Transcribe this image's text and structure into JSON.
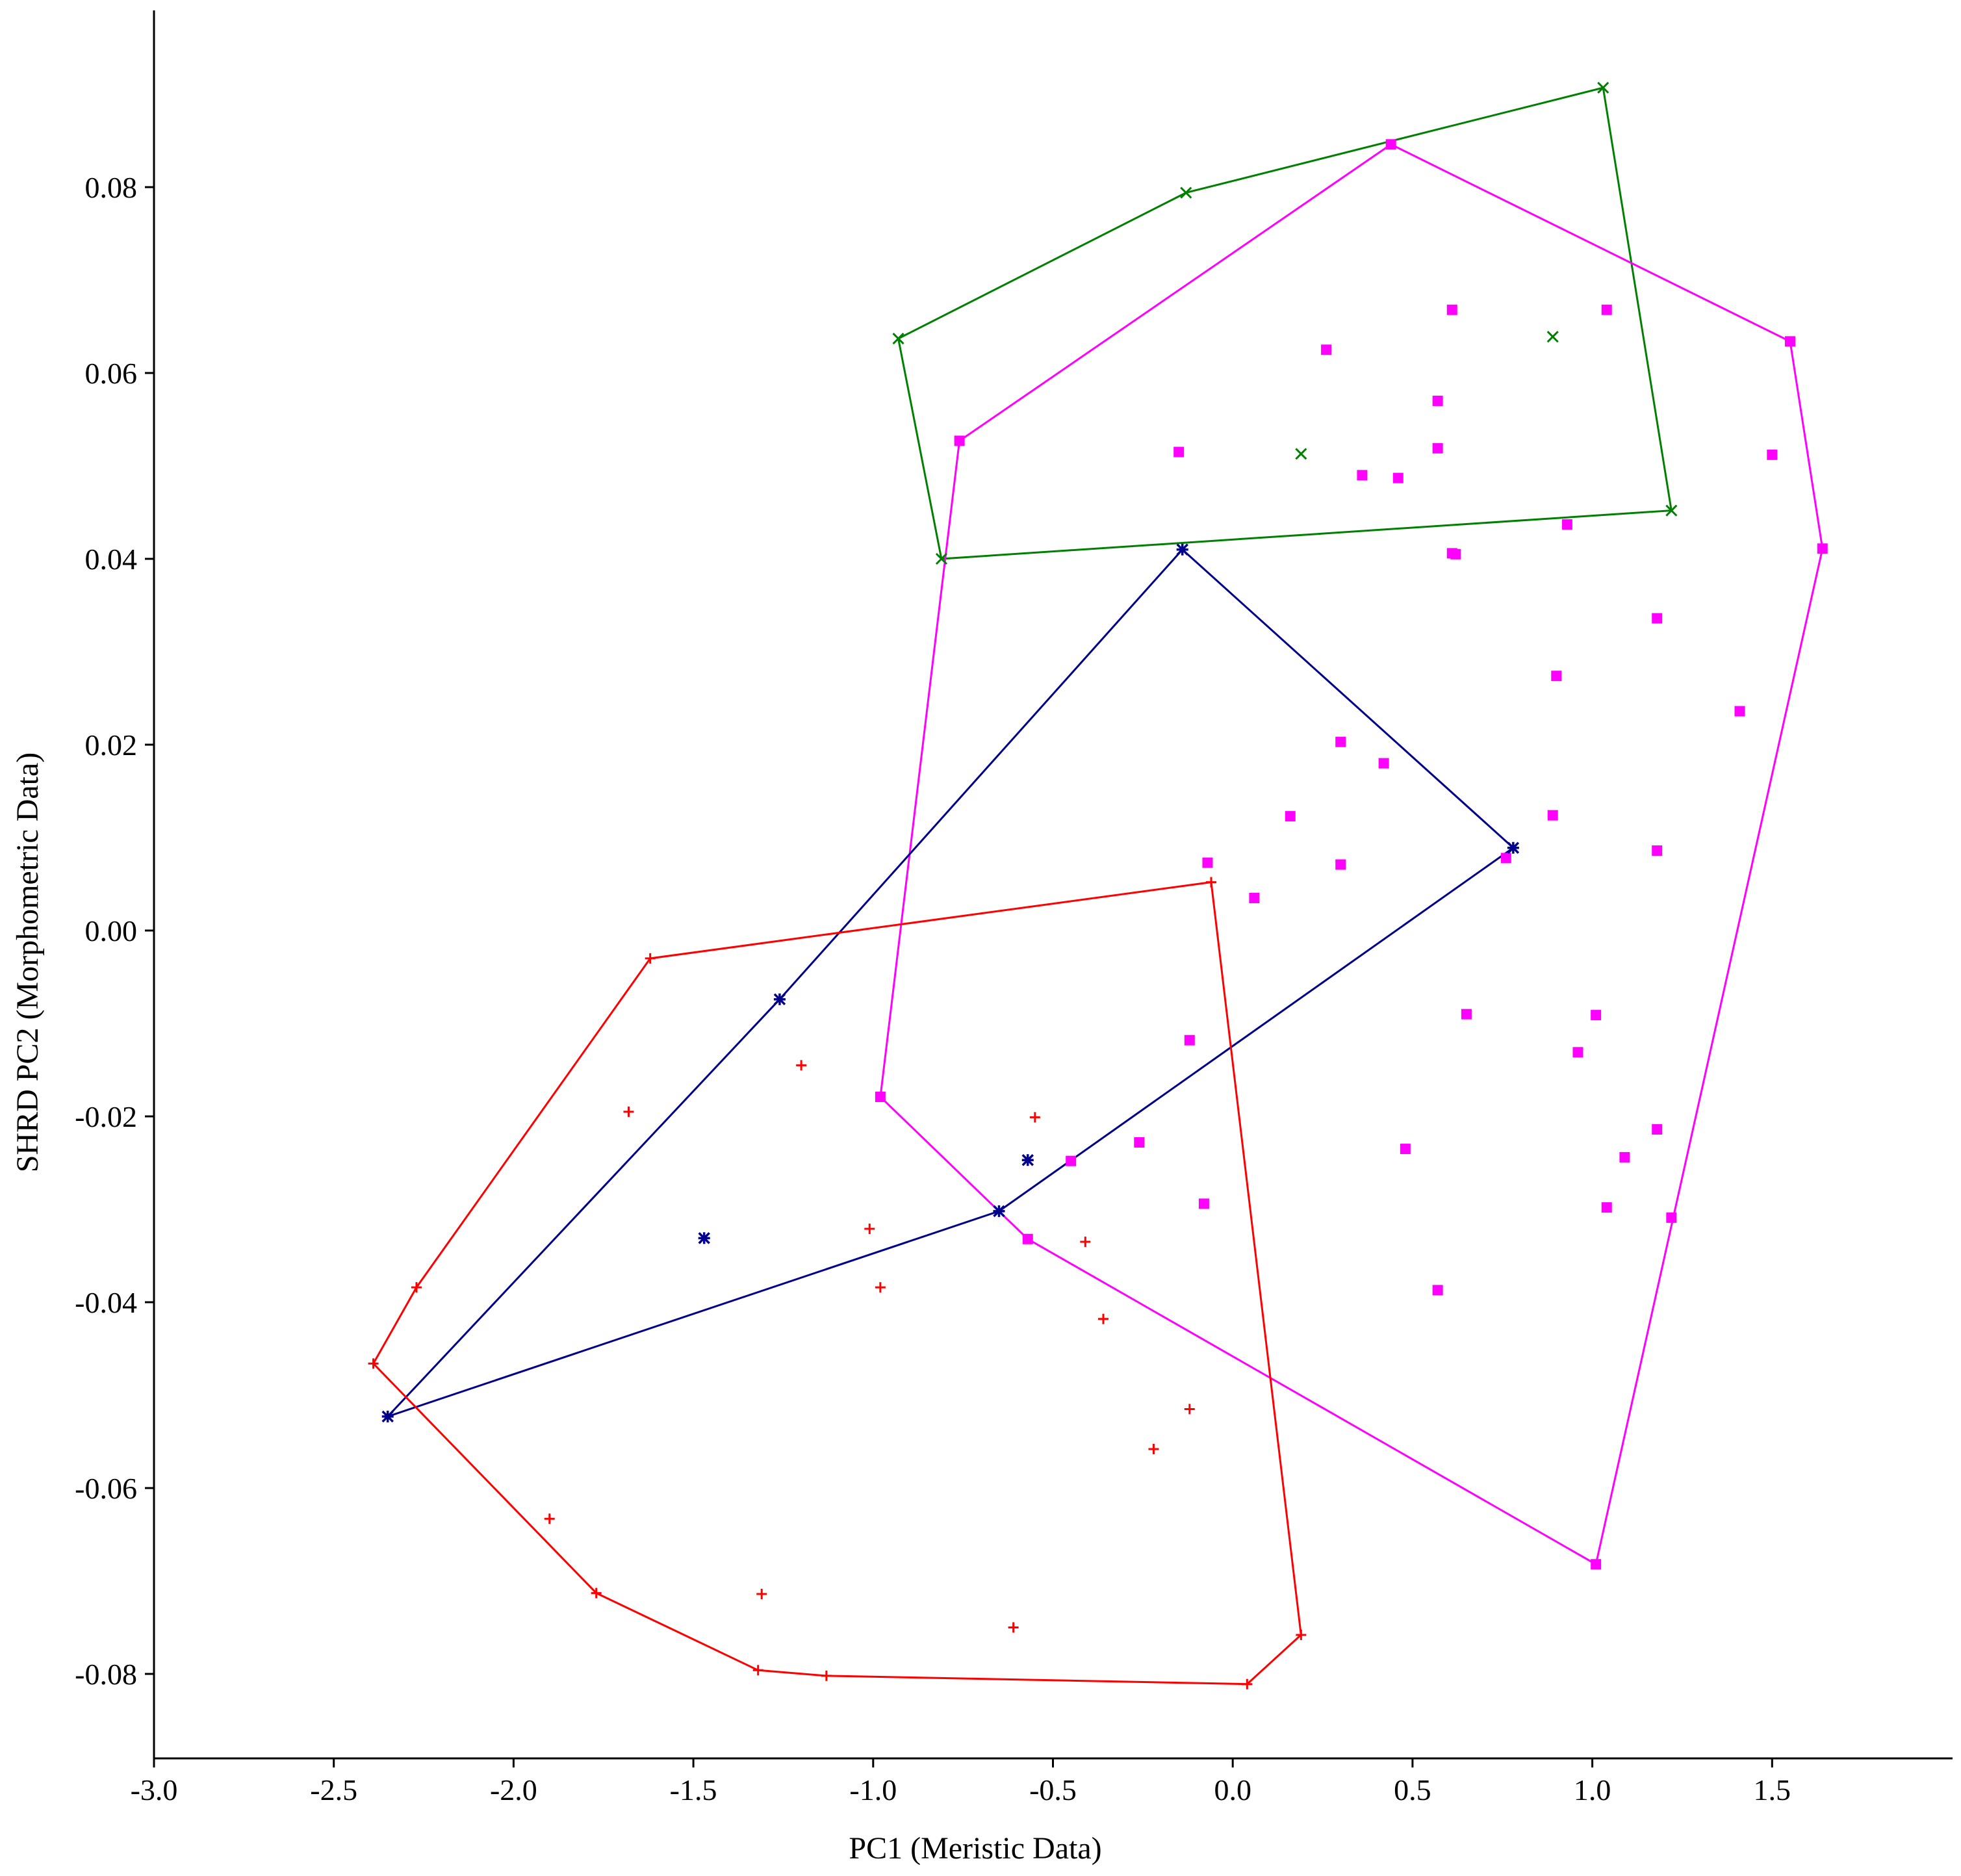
{
  "chart_data": {
    "type": "scatter",
    "title": "",
    "xlabel": "PC1 (Meristic Data)",
    "ylabel": "SHRD PC2 (Morphometric Data)",
    "xlim": [
      -3.0,
      2.0
    ],
    "ylim": [
      -0.09,
      0.1
    ],
    "xticks": [
      -3.0,
      -2.5,
      -2.0,
      -1.5,
      -1.0,
      -0.5,
      0.0,
      0.5,
      1.0,
      1.5
    ],
    "xtick_labels": [
      "-3.0",
      "-2.5",
      "-2.0",
      "-1.5",
      "-1.0",
      "-0.5",
      "0.0",
      "0.5",
      "1.0",
      "1.5"
    ],
    "yticks": [
      -0.08,
      -0.06,
      -0.04,
      -0.02,
      0.0,
      0.02,
      0.04,
      0.06,
      0.08
    ],
    "ytick_labels": [
      "-0.08",
      "-0.06",
      "-0.04",
      "-0.02",
      "0.00",
      "0.02",
      "0.04",
      "0.06",
      "0.08"
    ],
    "grid": false,
    "legend": "none",
    "series": [
      {
        "color": "#008000",
        "marker": "x",
        "points": [
          [
            -0.93,
            0.0637
          ],
          [
            -0.13,
            0.0794
          ],
          [
            1.03,
            0.0907
          ],
          [
            1.22,
            0.0452
          ],
          [
            -0.81,
            0.04
          ],
          [
            0.89,
            0.0639
          ],
          [
            0.19,
            0.0513
          ]
        ],
        "hull": [
          [
            -0.93,
            0.0637
          ],
          [
            -0.13,
            0.0794
          ],
          [
            1.03,
            0.0907
          ],
          [
            1.22,
            0.0452
          ],
          [
            -0.81,
            0.04
          ]
        ]
      },
      {
        "color": "#ff00ff",
        "marker": "square",
        "points": [
          [
            0.44,
            0.0846
          ],
          [
            1.55,
            0.0634
          ],
          [
            1.64,
            0.0411
          ],
          [
            1.01,
            -0.0682
          ],
          [
            -0.57,
            -0.0332
          ],
          [
            -0.98,
            -0.0179
          ],
          [
            -0.76,
            0.0527
          ],
          [
            0.61,
            0.0668
          ],
          [
            1.04,
            0.0668
          ],
          [
            0.26,
            0.0625
          ],
          [
            0.57,
            0.057
          ],
          [
            -0.15,
            0.0515
          ],
          [
            0.57,
            0.0519
          ],
          [
            1.5,
            0.0512
          ],
          [
            0.36,
            0.049
          ],
          [
            0.46,
            0.0487
          ],
          [
            0.93,
            0.0437
          ],
          [
            0.61,
            0.0406
          ],
          [
            0.62,
            0.0405
          ],
          [
            1.18,
            0.0336
          ],
          [
            0.9,
            0.0274
          ],
          [
            1.41,
            0.0236
          ],
          [
            0.3,
            0.0203
          ],
          [
            0.42,
            0.018
          ],
          [
            0.16,
            0.0123
          ],
          [
            0.89,
            0.0124
          ],
          [
            1.18,
            0.0086
          ],
          [
            0.76,
            0.0078
          ],
          [
            -0.07,
            0.0073
          ],
          [
            0.3,
            0.0071
          ],
          [
            0.06,
            0.0035
          ],
          [
            0.65,
            -0.009
          ],
          [
            1.01,
            -0.0091
          ],
          [
            -0.12,
            -0.0118
          ],
          [
            0.96,
            -0.0131
          ],
          [
            1.18,
            -0.0214
          ],
          [
            -0.26,
            -0.0228
          ],
          [
            0.48,
            -0.0235
          ],
          [
            1.09,
            -0.0244
          ],
          [
            -0.45,
            -0.0248
          ],
          [
            -0.08,
            -0.0294
          ],
          [
            1.04,
            -0.0298
          ],
          [
            1.22,
            -0.0309
          ],
          [
            0.57,
            -0.0387
          ]
        ],
        "hull": [
          [
            0.44,
            0.0846
          ],
          [
            1.55,
            0.0634
          ],
          [
            1.64,
            0.0411
          ],
          [
            1.01,
            -0.0682
          ],
          [
            -0.57,
            -0.0332
          ],
          [
            -0.98,
            -0.0179
          ],
          [
            -0.76,
            0.0527
          ]
        ]
      },
      {
        "color": "#00008b",
        "marker": "star",
        "points": [
          [
            -0.14,
            0.041
          ],
          [
            0.78,
            0.0089
          ],
          [
            -0.65,
            -0.0302
          ],
          [
            -2.35,
            -0.0523
          ],
          [
            -1.26,
            -0.0074
          ],
          [
            -0.57,
            -0.0247
          ],
          [
            -1.47,
            -0.0331
          ]
        ],
        "hull": [
          [
            -0.14,
            0.041
          ],
          [
            0.78,
            0.0089
          ],
          [
            -0.65,
            -0.0302
          ],
          [
            -2.35,
            -0.0523
          ],
          [
            -1.26,
            -0.0074
          ]
        ]
      },
      {
        "color": "#ff0000",
        "marker": "plus",
        "points": [
          [
            -1.62,
            -0.003
          ],
          [
            -0.06,
            0.0052
          ],
          [
            0.19,
            -0.0758
          ],
          [
            0.04,
            -0.0811
          ],
          [
            -1.13,
            -0.0802
          ],
          [
            -1.32,
            -0.0796
          ],
          [
            -1.77,
            -0.0713
          ],
          [
            -2.39,
            -0.0466
          ],
          [
            -2.27,
            -0.0384
          ],
          [
            -1.68,
            -0.0195
          ],
          [
            -1.2,
            -0.0145
          ],
          [
            -0.55,
            -0.0201
          ],
          [
            -1.01,
            -0.0321
          ],
          [
            -0.41,
            -0.0335
          ],
          [
            -0.98,
            -0.0384
          ],
          [
            -0.36,
            -0.0418
          ],
          [
            -0.12,
            -0.0515
          ],
          [
            -0.22,
            -0.0558
          ],
          [
            -1.9,
            -0.0633
          ],
          [
            -1.31,
            -0.0714
          ],
          [
            -0.61,
            -0.075
          ]
        ],
        "hull": [
          [
            -1.62,
            -0.003
          ],
          [
            -0.06,
            0.0052
          ],
          [
            0.19,
            -0.0758
          ],
          [
            0.04,
            -0.0811
          ],
          [
            -1.13,
            -0.0802
          ],
          [
            -1.32,
            -0.0796
          ],
          [
            -1.77,
            -0.0713
          ],
          [
            -2.39,
            -0.0466
          ],
          [
            -2.27,
            -0.0384
          ]
        ]
      }
    ]
  }
}
